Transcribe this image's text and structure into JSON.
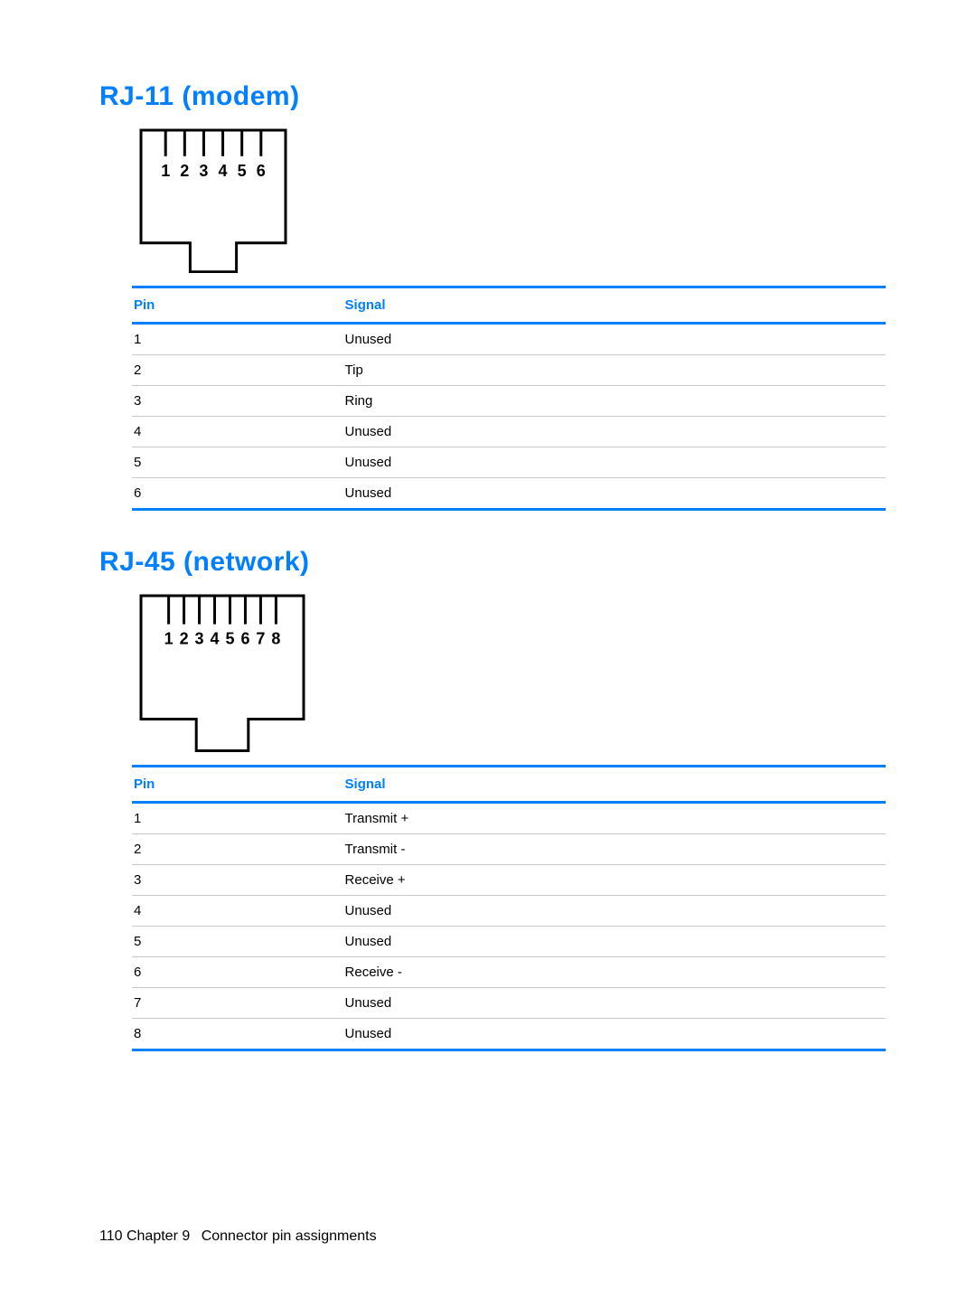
{
  "page": {
    "background": "#ffffff",
    "accent": "#007fff",
    "rule_light": "#c8c8c8",
    "text_color": "#000000"
  },
  "rj11": {
    "heading": "RJ-11 (modem)",
    "diagram": {
      "pins": [
        "1",
        "2",
        "3",
        "4",
        "5",
        "6"
      ],
      "stroke": "#000000",
      "stroke_width": 3,
      "label_fontsize": 18
    },
    "table": {
      "headers": {
        "pin": "Pin",
        "signal": "Signal"
      },
      "rows": [
        {
          "pin": "1",
          "signal": "Unused"
        },
        {
          "pin": "2",
          "signal": "Tip"
        },
        {
          "pin": "3",
          "signal": "Ring"
        },
        {
          "pin": "4",
          "signal": "Unused"
        },
        {
          "pin": "5",
          "signal": "Unused"
        },
        {
          "pin": "6",
          "signal": "Unused"
        }
      ]
    }
  },
  "rj45": {
    "heading": "RJ-45 (network)",
    "diagram": {
      "pins": [
        "1",
        "2",
        "3",
        "4",
        "5",
        "6",
        "7",
        "8"
      ],
      "stroke": "#000000",
      "stroke_width": 3,
      "label_fontsize": 18
    },
    "table": {
      "headers": {
        "pin": "Pin",
        "signal": "Signal"
      },
      "rows": [
        {
          "pin": "1",
          "signal": "Transmit +"
        },
        {
          "pin": "2",
          "signal": "Transmit -"
        },
        {
          "pin": "3",
          "signal": "Receive +"
        },
        {
          "pin": "4",
          "signal": "Unused"
        },
        {
          "pin": "5",
          "signal": "Unused"
        },
        {
          "pin": "6",
          "signal": "Receive -"
        },
        {
          "pin": "7",
          "signal": "Unused"
        },
        {
          "pin": "8",
          "signal": "Unused"
        }
      ]
    }
  },
  "footer": {
    "page_number": "110",
    "chapter_label": "Chapter 9",
    "chapter_title": "Connector pin assignments"
  }
}
